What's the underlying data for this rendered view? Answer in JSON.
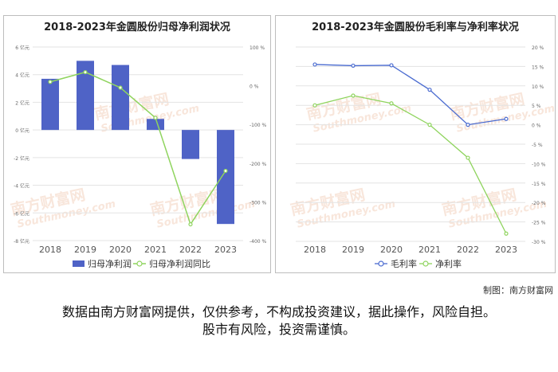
{
  "credit": "制图：南方财富网",
  "disclaimer": {
    "line1": "数据由南方财富网提供，仅供参考，不构成投资建议，据此操作，风险自担。",
    "line2": "股市有风险，投资需谨慎。"
  },
  "watermark": {
    "cn": "南方财富网",
    "en": "Southmoney.com"
  },
  "colors": {
    "bar": "#4f63c6",
    "yoy": "#8fd45e",
    "gross": "#4a6bd0",
    "net": "#8fd45e"
  },
  "chart_data": [
    {
      "type": "bar",
      "title": "2018-2023年金圆股份归母净利润状况",
      "categories": [
        "2018",
        "2019",
        "2020",
        "2021",
        "2022",
        "2023"
      ],
      "left_axis": {
        "ylim": [
          -8,
          6
        ],
        "ticks": [
          -8,
          -6,
          -4,
          -2,
          0,
          2,
          4,
          6
        ],
        "tick_labels": [
          "-8 亿元",
          "-6 亿元",
          "-4 亿元",
          "-2 亿元",
          "0 亿元",
          "2 亿元",
          "4 亿元",
          "6 亿元"
        ]
      },
      "right_axis": {
        "ylim": [
          -400,
          100
        ],
        "ticks": [
          -400,
          -300,
          -200,
          -100,
          0,
          100
        ],
        "tick_labels": [
          "-400 %",
          "-300 %",
          "-200 %",
          "-100 %",
          "0 %",
          "100 %"
        ]
      },
      "series": [
        {
          "name": "归母净利润",
          "type": "bar",
          "axis": "left",
          "values": [
            3.7,
            5.0,
            4.7,
            0.8,
            -2.1,
            -6.8
          ]
        },
        {
          "name": "归母净利润同比",
          "type": "line",
          "axis": "right",
          "values": [
            10,
            35,
            -5,
            -83,
            -358,
            -220
          ]
        }
      ],
      "legend": "bottom"
    },
    {
      "type": "line",
      "title": "2018-2023年金圆股份毛利率与净利率状况",
      "categories": [
        "2018",
        "2019",
        "2020",
        "2021",
        "2022",
        "2023"
      ],
      "right_axis": {
        "ylim": [
          -30,
          20
        ],
        "ticks": [
          -30,
          -25,
          -20,
          -15,
          -10,
          -5,
          0,
          5,
          10,
          15,
          20
        ],
        "tick_labels": [
          "-30 %",
          "-25 %",
          "-20 %",
          "-15 %",
          "-10 %",
          "-5 %",
          "0 %",
          "5 %",
          "10 %",
          "15 %",
          "20 %"
        ]
      },
      "series": [
        {
          "name": "毛利率",
          "values": [
            15.5,
            15.2,
            15.3,
            9.0,
            0.0,
            1.5
          ]
        },
        {
          "name": "净利率",
          "values": [
            5.0,
            7.5,
            5.5,
            0.0,
            -8.5,
            -28.0
          ]
        }
      ],
      "legend": "bottom"
    }
  ]
}
